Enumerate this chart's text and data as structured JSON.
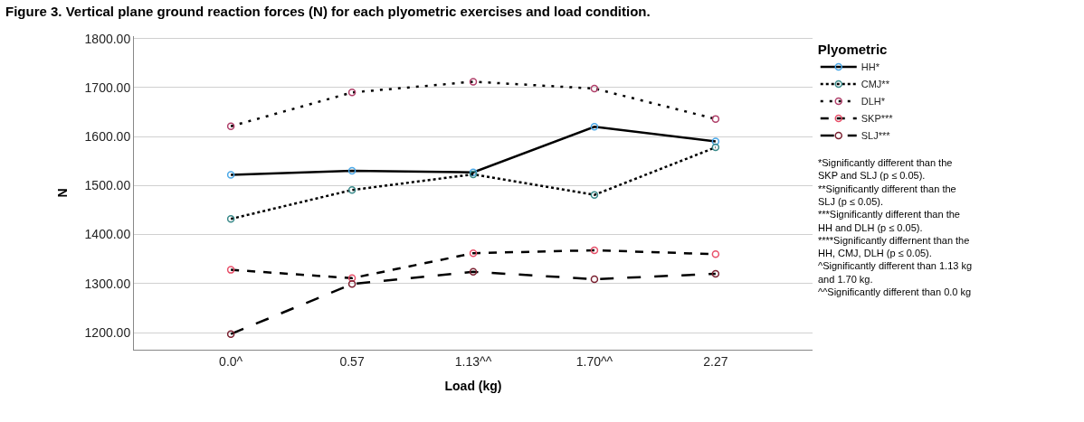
{
  "chart_data": {
    "type": "line",
    "title": "Figure 3. Vertical plane ground reaction forces (N) for each plyometric exercises and load condition.",
    "xlabel": "Load (kg)",
    "ylabel": "N",
    "legend_title": "Plyometric",
    "categories": [
      "0.0^",
      "0.57",
      "1.13^^",
      "1.70^^",
      "2.27"
    ],
    "series": [
      {
        "name": "HH*",
        "color": "#000000",
        "colors": [
          "#4aa8e8",
          "#4aa8e8",
          "#4aa8e8",
          "#4aa8e8",
          "#4aa8e8"
        ],
        "line_style": "solid",
        "values": [
          1522,
          1530,
          1527,
          1620,
          1590
        ]
      },
      {
        "name": "CMJ**",
        "color": "#000000",
        "colors": [
          "#3a8a8a",
          "#3a8a8a",
          "#3a8a8a",
          "#3a8a8a",
          "#3a8a8a"
        ],
        "line_style": "dotted",
        "values": [
          1432,
          1491,
          1523,
          1481,
          1578
        ]
      },
      {
        "name": "DLH*",
        "color": "#000000",
        "colors": [
          "#b0406a",
          "#b0406a",
          "#b0406a",
          "#b0406a",
          "#b0406a"
        ],
        "line_style": "dotted",
        "values": [
          1621,
          1690,
          1712,
          1698,
          1636
        ]
      },
      {
        "name": "SKP***",
        "color": "#000000",
        "colors": [
          "#e8506a",
          "#e8506a",
          "#e8506a",
          "#e8506a",
          "#e8506a"
        ],
        "line_style": "dashed",
        "values": [
          1328,
          1311,
          1362,
          1368,
          1360
        ]
      },
      {
        "name": "SLJ***",
        "color": "#000000",
        "colors": [
          "#7a2030",
          "#7a2030",
          "#7a2030",
          "#7a2030",
          "#7a2030"
        ],
        "line_style": "dashed",
        "values": [
          1197,
          1299,
          1324,
          1309,
          1320
        ]
      }
    ],
    "ylim": [
      1165,
      1805
    ],
    "yticks": [
      {
        "value": 1200,
        "label": "1200.00"
      },
      {
        "value": 1300,
        "label": "1300.00"
      },
      {
        "value": 1400,
        "label": "1400.00"
      },
      {
        "value": 1500,
        "label": "1500.00"
      },
      {
        "value": 1600,
        "label": "1600.00"
      },
      {
        "value": 1700,
        "label": "1700.00"
      },
      {
        "value": 1800,
        "label": "1800.00"
      }
    ],
    "grid": "y",
    "legend": "top right",
    "marker": "circle",
    "annotations": [
      "*Significantly different than the\nSKP and SLJ (p ≤ 0.05).",
      "**Significantly different than the\nSLJ (p ≤ 0.05).",
      "***Significantly different than the\nHH and DLH (p ≤ 0.05).",
      "****Significantly differnent than the\nHH, CMJ, DLH (p ≤ 0.05).",
      "^Significantly different than 1.13 kg\nand 1.70 kg.",
      "^^Significantly different than 0.0 kg"
    ]
  }
}
